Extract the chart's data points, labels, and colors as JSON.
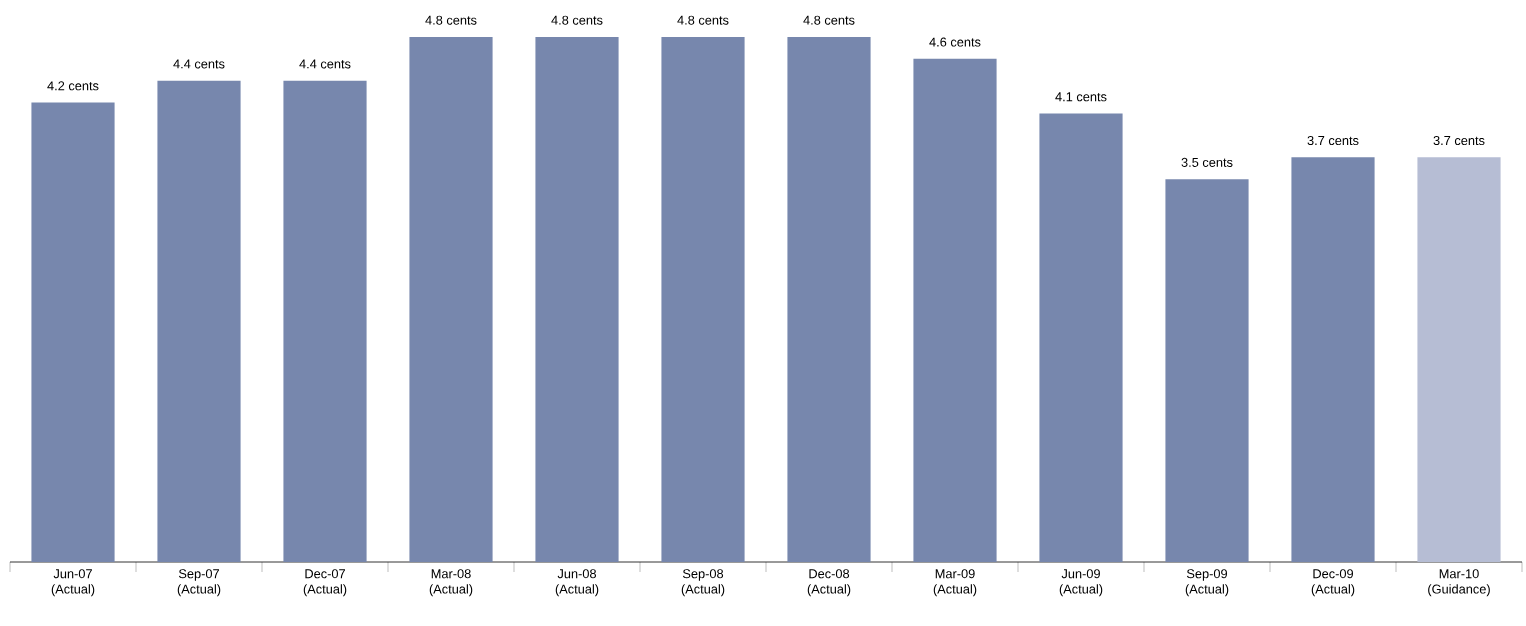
{
  "chart_data": {
    "type": "bar",
    "categories": [
      "Jun-07 (Actual)",
      "Sep-07 (Actual)",
      "Dec-07 (Actual)",
      "Mar-08 (Actual)",
      "Jun-08 (Actual)",
      "Sep-08 (Actual)",
      "Dec-08 (Actual)",
      "Mar-09 (Actual)",
      "Jun-09 (Actual)",
      "Sep-09 (Actual)",
      "Dec-09 (Actual)",
      "Mar-10 (Guidance)"
    ],
    "values": [
      4.2,
      4.4,
      4.4,
      4.8,
      4.8,
      4.8,
      4.8,
      4.6,
      4.1,
      3.5,
      3.7,
      3.7
    ],
    "colors": [
      "#7787ad",
      "#7787ad",
      "#7787ad",
      "#7787ad",
      "#7787ad",
      "#7787ad",
      "#7787ad",
      "#7787ad",
      "#7787ad",
      "#7787ad",
      "#7787ad",
      "#b6bdd4"
    ],
    "value_labels": [
      "4.2 cents",
      "4.4 cents",
      "4.4 cents",
      "4.8 cents",
      "4.8 cents",
      "4.8 cents",
      "4.8 cents",
      "4.6 cents",
      "4.1 cents",
      "3.5 cents",
      "3.7 cents",
      "3.7 cents"
    ],
    "tick_labels": "x"
  }
}
